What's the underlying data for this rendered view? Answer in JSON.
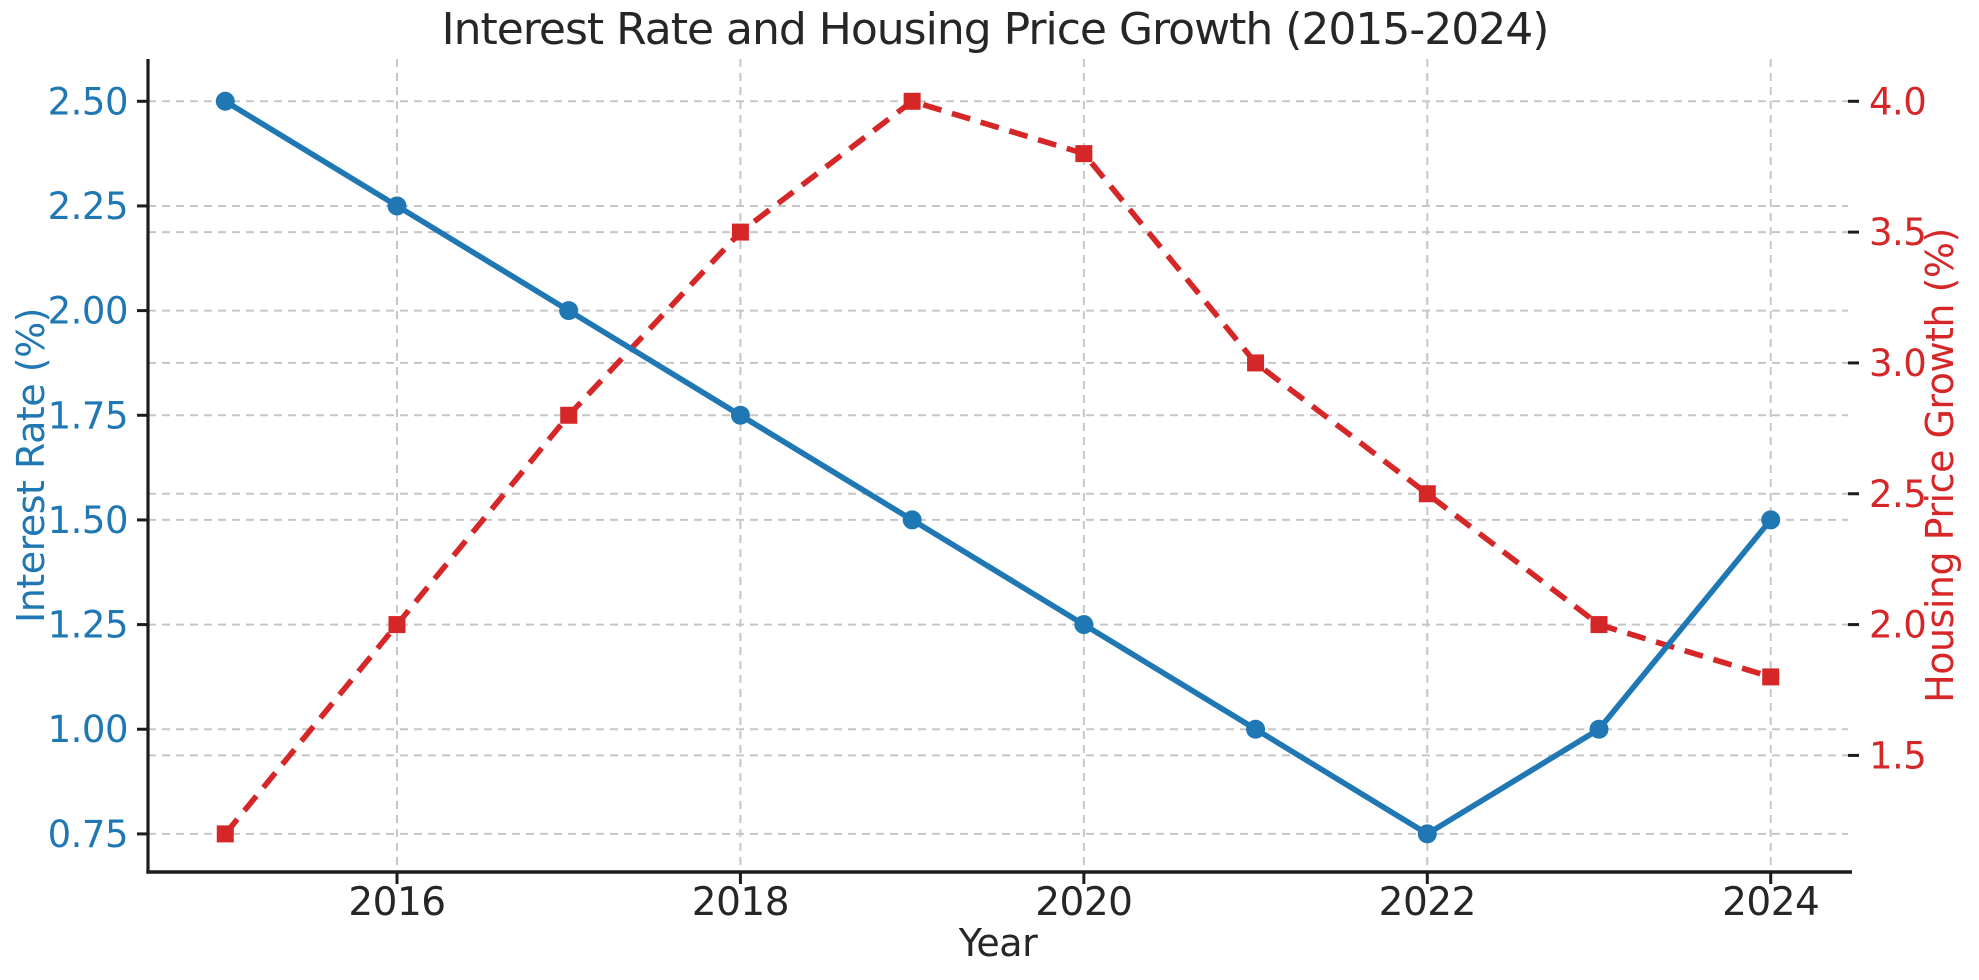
{
  "figure": {
    "background": "#ffffff"
  },
  "chart_data": {
    "type": "line",
    "title": "Interest Rate and Housing Price Growth (2015-2024)",
    "xlabel": "Year",
    "ylabel_left": "Interest Rate (%)",
    "ylabel_right": "Housing Price Growth (%)",
    "x": [
      2015,
      2016,
      2017,
      2018,
      2019,
      2020,
      2021,
      2022,
      2023,
      2024
    ],
    "series": [
      {
        "name": "Housing Price Growth (%)",
        "axis": "right",
        "color": "#d62728",
        "line_style": "dashed",
        "marker": "square",
        "values": [
          1.2,
          2.0,
          2.8,
          3.5,
          4.0,
          3.8,
          3.0,
          2.5,
          2.0,
          1.8
        ]
      },
      {
        "name": "Interest Rate (%)",
        "axis": "left",
        "color": "#1f77b4",
        "line_style": "solid",
        "marker": "circle",
        "values": [
          2.5,
          2.25,
          2.0,
          1.75,
          1.5,
          1.25,
          1.0,
          0.75,
          1.0,
          1.5
        ]
      }
    ],
    "x_ticks": {
      "values": [
        2016,
        2018,
        2020,
        2022,
        2024
      ],
      "labels": [
        "2016",
        "2018",
        "2020",
        "2022",
        "2024"
      ]
    },
    "y_ticks_left": {
      "values": [
        0.75,
        1.0,
        1.25,
        1.5,
        1.75,
        2.0,
        2.25,
        2.5
      ],
      "labels": [
        "0.75",
        "1.00",
        "1.25",
        "1.50",
        "1.75",
        "2.00",
        "2.25",
        "2.50"
      ]
    },
    "y_ticks_right": {
      "values": [
        1.5,
        2.0,
        2.5,
        3.0,
        3.5,
        4.0
      ],
      "labels": [
        "1.5",
        "2.0",
        "2.5",
        "3.0",
        "3.5",
        "4.0"
      ]
    },
    "xlim": [
      2014.55,
      2024.45
    ],
    "ylim_left": [
      0.659,
      2.601
    ],
    "ylim_right": [
      1.0544,
      4.1616
    ],
    "grid": "dashed-both-axes",
    "legend": "none",
    "colors": {
      "left_axis": "#1f77b4",
      "right_axis": "#d62728",
      "text": "#262626",
      "grid": "#c6c6c6",
      "spine": "#1c1c1c"
    }
  }
}
